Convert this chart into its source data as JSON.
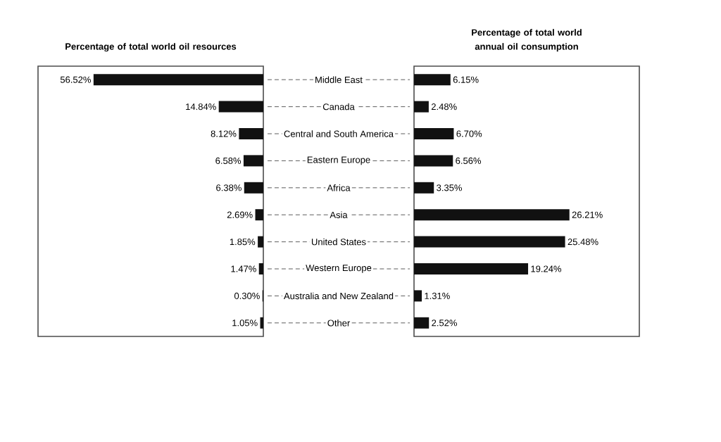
{
  "chart_data": [
    {
      "type": "bar",
      "orientation": "horizontal",
      "title": "Percentage of total world oil resources",
      "categories": [
        "Middle East",
        "Canada",
        "Central and South America",
        "Eastern Europe",
        "Africa",
        "Asia",
        "United States",
        "Western Europe",
        "Australia and New Zealand",
        "Other"
      ],
      "values": [
        56.52,
        14.84,
        8.12,
        6.58,
        6.38,
        2.69,
        1.85,
        1.47,
        0.3,
        1.05
      ],
      "value_labels": [
        "56.52%",
        "14.84%",
        "8.12%",
        "6.58%",
        "6.38%",
        "2.69%",
        "1.85%",
        "1.47%",
        "0.30%",
        "1.05%"
      ],
      "color": "#111111",
      "xlim": [
        75,
        0
      ],
      "tick_labels": "y"
    },
    {
      "type": "bar",
      "orientation": "horizontal",
      "title": "Percentage of total world annual oil consumption",
      "categories": [
        null,
        null,
        null,
        null,
        null,
        null,
        null,
        null,
        null,
        null
      ],
      "values": [
        6.15,
        2.48,
        6.7,
        6.56,
        3.35,
        26.21,
        25.48,
        19.24,
        1.31,
        2.52
      ],
      "value_labels": [
        "6.15%",
        "2.48%",
        "6.70%",
        "6.56%",
        "3.35%",
        "26.21%",
        "25.48%",
        "19.24%",
        "1.31%",
        "2.52%"
      ],
      "color": "#111111",
      "xlim": [
        0,
        38
      ],
      "tick_labels": false
    }
  ]
}
